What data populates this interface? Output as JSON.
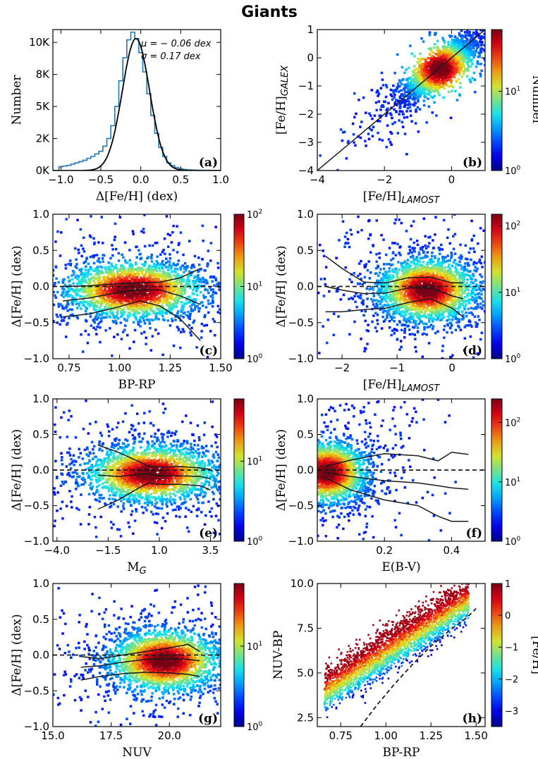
{
  "figure": {
    "title": "Giants"
  },
  "chart_data": [
    {
      "id": "a",
      "panel_label": "(a)",
      "type": "histogram",
      "xlabel": "Δ[Fe/H] (dex)",
      "ylabel": "Number",
      "xlim": [
        -1.1,
        1.0
      ],
      "ylim": [
        0,
        11000
      ],
      "xticks": [
        "−1.0",
        "−0.5",
        "0.0",
        "0.5",
        "1.0"
      ],
      "xtick_values": [
        -1.0,
        -0.5,
        0.0,
        0.5,
        1.0
      ],
      "yticks": [
        "0K",
        "2K",
        "5K",
        "8K",
        "10K"
      ],
      "ytick_values": [
        0,
        2500,
        5000,
        7500,
        10000
      ],
      "annotations": [
        "μ = − 0.06 dex",
        "σ = 0.17 dex"
      ],
      "series": [
        {
          "type": "step",
          "color": "#1f77b4",
          "x": [
            -1.0,
            -0.95,
            -0.9,
            -0.85,
            -0.8,
            -0.75,
            -0.7,
            -0.65,
            -0.6,
            -0.55,
            -0.5,
            -0.45,
            -0.4,
            -0.35,
            -0.3,
            -0.25,
            -0.2,
            -0.15,
            -0.1,
            -0.05,
            0.0,
            0.05,
            0.1,
            0.15,
            0.2,
            0.25,
            0.3,
            0.35,
            0.4,
            0.45,
            0.5,
            0.55,
            0.6,
            0.65,
            0.7,
            0.75,
            0.8,
            0.85,
            0.9,
            0.95
          ],
          "values": [
            300,
            350,
            400,
            500,
            600,
            700,
            800,
            950,
            1100,
            1300,
            1500,
            1900,
            2500,
            3500,
            5000,
            7000,
            8800,
            10200,
            10800,
            10300,
            9200,
            7700,
            6000,
            4300,
            2900,
            1800,
            1100,
            600,
            380,
            230,
            140,
            90,
            60,
            45,
            35,
            25,
            20,
            15,
            10,
            8
          ]
        },
        {
          "type": "gaussian_fit",
          "color": "#000000",
          "mu": -0.06,
          "sigma": 0.17,
          "amplitude": 10300
        }
      ]
    },
    {
      "id": "b",
      "panel_label": "(b)",
      "type": "heatmap",
      "xlabel": "[Fe/H]",
      "xlabel_sub": "LAMOST",
      "ylabel": "[Fe/H]",
      "ylabel_sub": "GALEX",
      "xlim": [
        -4,
        1
      ],
      "ylim": [
        -4,
        1
      ],
      "xticks": [
        "−4",
        "−2",
        "0"
      ],
      "xtick_values": [
        -4,
        -2,
        0
      ],
      "yticks": [
        "−4",
        "−3",
        "−2",
        "−1",
        "0",
        "1"
      ],
      "ytick_values": [
        -4,
        -3,
        -2,
        -1,
        0,
        1
      ],
      "colorbar": {
        "label": "Number",
        "scale": "log",
        "range": [
          1,
          60
        ],
        "ticks": [
          "10^0",
          "10^1"
        ],
        "tick_values": [
          1,
          10
        ]
      },
      "density": {
        "x_center": -0.35,
        "y_center": -0.4,
        "x_spread": 0.55,
        "y_spread": 0.55,
        "correlation": 0.85,
        "n_points": 2400
      },
      "lines": [
        {
          "type": "one_to_one",
          "x": [
            -4,
            1
          ],
          "y": [
            -4,
            1
          ],
          "style": "solid"
        }
      ]
    },
    {
      "id": "c",
      "panel_label": "(c)",
      "type": "heatmap",
      "xlabel": "BP-RP",
      "ylabel": "Δ[Fe/H] (dex)",
      "xlim": [
        0.67,
        1.5
      ],
      "ylim": [
        -1.0,
        1.0
      ],
      "xticks": [
        "0.75",
        "1.00",
        "1.25",
        "1.50"
      ],
      "xtick_values": [
        0.75,
        1.0,
        1.25,
        1.5
      ],
      "yticks": [
        "−1.0",
        "−0.5",
        "0.0",
        "0.5",
        "1.0"
      ],
      "ytick_values": [
        -1.0,
        -0.5,
        0.0,
        0.5,
        1.0
      ],
      "colorbar": {
        "scale": "log",
        "range": [
          1,
          100
        ],
        "ticks": [
          "10^0",
          "10^1",
          "10^2"
        ],
        "tick_values": [
          1,
          10,
          100
        ]
      },
      "density": {
        "x_center": 1.07,
        "y_center": -0.05,
        "x_spread": 0.17,
        "y_spread": 0.2,
        "correlation": 0,
        "n_points": 2600
      },
      "lines": [
        {
          "x": [
            0.72,
            0.85,
            1.0,
            1.1,
            1.2,
            1.3,
            1.4
          ],
          "y": [
            0.0,
            0.01,
            0.04,
            0.05,
            0.06,
            0.12,
            0.25
          ],
          "style": "solid"
        },
        {
          "x": [
            0.72,
            0.85,
            1.0,
            1.1,
            1.2,
            1.3,
            1.4
          ],
          "y": [
            -0.2,
            -0.16,
            -0.08,
            -0.04,
            -0.05,
            -0.13,
            -0.25
          ],
          "style": "solid"
        },
        {
          "x": [
            0.72,
            0.85,
            1.0,
            1.1,
            1.2,
            1.3,
            1.4
          ],
          "y": [
            -0.42,
            -0.38,
            -0.28,
            -0.2,
            -0.27,
            -0.45,
            -0.75
          ],
          "style": "solid"
        },
        {
          "x": [
            0.67,
            1.5
          ],
          "y": [
            0,
            0
          ],
          "style": "dashed"
        }
      ]
    },
    {
      "id": "d",
      "panel_label": "(d)",
      "type": "heatmap",
      "xlabel": "[Fe/H]",
      "xlabel_sub": "LAMOST",
      "ylabel": "Δ[Fe/H] (dex)",
      "xlim": [
        -2.45,
        0.6
      ],
      "ylim": [
        -1.0,
        1.0
      ],
      "xticks": [
        "−2",
        "−1",
        "0"
      ],
      "xtick_values": [
        -2,
        -1,
        0
      ],
      "yticks": [
        "−1.0",
        "−0.5",
        "0.0",
        "0.5",
        "1.0"
      ],
      "ytick_values": [
        -1.0,
        -0.5,
        0.0,
        0.5,
        1.0
      ],
      "colorbar": {
        "scale": "log",
        "range": [
          1,
          150
        ],
        "ticks": [
          "10^0",
          "10^1",
          "10^2"
        ],
        "tick_values": [
          1,
          10,
          100
        ]
      },
      "density": {
        "x_center": -0.45,
        "y_center": -0.05,
        "x_spread": 0.45,
        "y_spread": 0.22,
        "correlation": 0,
        "n_points": 2600
      },
      "lines": [
        {
          "x": [
            -2.3,
            -2.0,
            -1.6,
            -1.2,
            -0.8,
            -0.4,
            0.0,
            0.2
          ],
          "y": [
            0.42,
            0.25,
            0.06,
            0.05,
            0.12,
            0.13,
            0.05,
            0.05
          ],
          "style": "solid"
        },
        {
          "x": [
            -2.3,
            -2.0,
            -1.6,
            -1.2,
            -0.8,
            -0.4,
            0.0,
            0.2
          ],
          "y": [
            0.0,
            -0.05,
            -0.1,
            -0.09,
            -0.02,
            -0.02,
            -0.13,
            -0.17
          ],
          "style": "solid"
        },
        {
          "x": [
            -2.3,
            -2.0,
            -1.6,
            -1.2,
            -0.8,
            -0.4,
            0.0,
            0.2
          ],
          "y": [
            -0.35,
            -0.35,
            -0.32,
            -0.3,
            -0.22,
            -0.17,
            -0.3,
            -0.42
          ],
          "style": "solid"
        },
        {
          "x": [
            -2.45,
            0.6
          ],
          "y": [
            0,
            0
          ],
          "style": "dashed"
        }
      ]
    },
    {
      "id": "e",
      "panel_label": "(e)",
      "type": "heatmap",
      "xlabel": "M",
      "xlabel_sub": "G",
      "ylabel": "Δ[Fe/H] (dex)",
      "xlim": [
        -4.2,
        4.0
      ],
      "ylim": [
        -1.0,
        1.0
      ],
      "xticks": [
        "−4.0",
        "−1.5",
        "1.0",
        "3.5"
      ],
      "xtick_values": [
        -4.0,
        -1.5,
        1.0,
        3.5
      ],
      "yticks": [
        "−1.0",
        "−0.5",
        "0.0",
        "0.5",
        "1.0"
      ],
      "ytick_values": [
        -1.0,
        -0.5,
        0.0,
        0.5,
        1.0
      ],
      "colorbar": {
        "scale": "log",
        "range": [
          1,
          60
        ],
        "ticks": [
          "10^0",
          "10^1"
        ],
        "tick_values": [
          1,
          10
        ]
      },
      "density": {
        "x_center": 0.6,
        "y_center": -0.05,
        "x_spread": 1.6,
        "y_spread": 0.2,
        "correlation": 0,
        "n_points": 2600
      },
      "lines": [
        {
          "x": [
            -2.0,
            -1.0,
            0.0,
            0.5,
            1.0,
            2.0,
            3.0,
            3.5
          ],
          "y": [
            0.35,
            0.25,
            0.12,
            0.05,
            0.04,
            0.05,
            0.03,
            0.01
          ],
          "style": "solid"
        },
        {
          "x": [
            -2.0,
            -1.0,
            0.0,
            0.5,
            1.0,
            2.0,
            3.0,
            3.5
          ],
          "y": [
            -0.07,
            -0.09,
            -0.06,
            -0.05,
            -0.08,
            -0.08,
            -0.09,
            -0.12
          ],
          "style": "solid"
        },
        {
          "x": [
            -2.0,
            -1.0,
            0.0,
            0.5,
            1.0,
            2.0,
            3.0,
            3.5
          ],
          "y": [
            -0.55,
            -0.42,
            -0.25,
            -0.18,
            -0.2,
            -0.2,
            -0.22,
            -0.28
          ],
          "style": "solid"
        },
        {
          "x": [
            -4.2,
            4.0
          ],
          "y": [
            0,
            0
          ],
          "style": "dashed"
        }
      ]
    },
    {
      "id": "f",
      "panel_label": "(f)",
      "type": "heatmap",
      "xlabel": "E(B-V)",
      "ylabel": "Δ[Fe/H] (dex)",
      "xlim": [
        0.0,
        0.5
      ],
      "ylim": [
        -1.0,
        1.0
      ],
      "xticks": [
        "0.2",
        "0.4"
      ],
      "xtick_values": [
        0.2,
        0.4
      ],
      "yticks": [
        "−1.0",
        "−0.5",
        "0.0",
        "0.5",
        "1.0"
      ],
      "ytick_values": [
        -1.0,
        -0.5,
        0.0,
        0.5,
        1.0
      ],
      "colorbar": {
        "scale": "log",
        "range": [
          1,
          250
        ],
        "ticks": [
          "10^0",
          "10^1",
          "10^2"
        ],
        "tick_values": [
          1,
          10,
          100
        ]
      },
      "density": {
        "x_center": 0.03,
        "y_center": -0.03,
        "x_spread": 0.06,
        "y_spread": 0.22,
        "correlation": 0,
        "n_points": 2600
      },
      "lines": [
        {
          "x": [
            0.02,
            0.1,
            0.2,
            0.3,
            0.36,
            0.4,
            0.45
          ],
          "y": [
            0.05,
            0.14,
            0.23,
            0.2,
            0.13,
            0.25,
            0.22
          ],
          "style": "solid"
        },
        {
          "x": [
            0.02,
            0.1,
            0.2,
            0.3,
            0.36,
            0.4,
            0.45
          ],
          "y": [
            -0.03,
            -0.09,
            -0.15,
            -0.18,
            -0.22,
            -0.25,
            -0.27
          ],
          "style": "solid"
        },
        {
          "x": [
            0.02,
            0.1,
            0.2,
            0.3,
            0.36,
            0.4,
            0.45
          ],
          "y": [
            -0.1,
            -0.28,
            -0.42,
            -0.5,
            -0.65,
            -0.72,
            -0.72
          ],
          "style": "solid"
        },
        {
          "x": [
            0.0,
            0.5
          ],
          "y": [
            0,
            0
          ],
          "style": "dashed"
        }
      ]
    },
    {
      "id": "g",
      "panel_label": "(g)",
      "type": "heatmap",
      "xlabel": "NUV",
      "ylabel": "Δ[Fe/H] (dex)",
      "xlim": [
        15.0,
        22.2
      ],
      "ylim": [
        -1.0,
        1.0
      ],
      "xticks": [
        "15.0",
        "17.5",
        "20.0"
      ],
      "xtick_values": [
        15.0,
        17.5,
        20.0
      ],
      "yticks": [
        "−1.0",
        "−0.5",
        "0.0",
        "0.5",
        "1.0"
      ],
      "ytick_values": [
        -1.0,
        -0.5,
        0.0,
        0.5,
        1.0
      ],
      "colorbar": {
        "scale": "log",
        "range": [
          1,
          60
        ],
        "ticks": [
          "10^0",
          "10^1"
        ],
        "tick_values": [
          1,
          10
        ]
      },
      "density": {
        "x_center": 19.8,
        "y_center": -0.08,
        "x_spread": 1.2,
        "y_spread": 0.22,
        "correlation": 0,
        "n_points": 2600
      },
      "lines": [
        {
          "x": [
            16.2,
            17.0,
            18.0,
            19.0,
            20.0,
            20.8,
            21.3
          ],
          "y": [
            -0.02,
            -0.05,
            0.0,
            0.05,
            0.1,
            0.15,
            0.05
          ],
          "style": "solid"
        },
        {
          "x": [
            16.2,
            17.0,
            18.0,
            19.0,
            20.0,
            20.8,
            21.3
          ],
          "y": [
            -0.17,
            -0.15,
            -0.1,
            -0.06,
            -0.05,
            -0.06,
            -0.08
          ],
          "style": "solid"
        },
        {
          "x": [
            16.2,
            17.0,
            18.0,
            19.0,
            20.0,
            20.8,
            21.3
          ],
          "y": [
            -0.35,
            -0.3,
            -0.26,
            -0.24,
            -0.25,
            -0.27,
            -0.3
          ],
          "style": "solid"
        },
        {
          "x": [
            15.0,
            22.2
          ],
          "y": [
            0,
            0
          ],
          "style": "dashed"
        }
      ]
    },
    {
      "id": "h",
      "panel_label": "(h)",
      "type": "scatter",
      "xlabel": "BP-RP",
      "ylabel": "NUV-BP",
      "xlim": [
        0.62,
        1.55
      ],
      "ylim": [
        2.0,
        10.0
      ],
      "xticks": [
        "0.75",
        "1.00",
        "1.25",
        "1.50"
      ],
      "xtick_values": [
        0.75,
        1.0,
        1.25,
        1.5
      ],
      "yticks": [
        "2.5",
        "5.0",
        "7.5",
        "10.0"
      ],
      "ytick_values": [
        2.5,
        5.0,
        7.5,
        10.0
      ],
      "colorbar": {
        "label": "[Fe/H]",
        "scale": "linear",
        "range": [
          -3.5,
          1.0
        ],
        "ticks": [
          "−3",
          "−2",
          "−1",
          "0",
          "1"
        ],
        "tick_values": [
          -3,
          -2,
          -1,
          0,
          1
        ]
      },
      "relation": {
        "x_range": [
          0.66,
          1.46
        ],
        "slope": 6.4,
        "intercept": -0.2,
        "spread": 0.6
      },
      "lines": [
        {
          "x": [
            0.86,
            0.95,
            1.05,
            1.15,
            1.25,
            1.35,
            1.45,
            1.5
          ],
          "y": [
            2.0,
            3.2,
            4.4,
            5.5,
            6.5,
            7.35,
            8.1,
            8.6
          ],
          "style": "dashed"
        }
      ]
    }
  ]
}
